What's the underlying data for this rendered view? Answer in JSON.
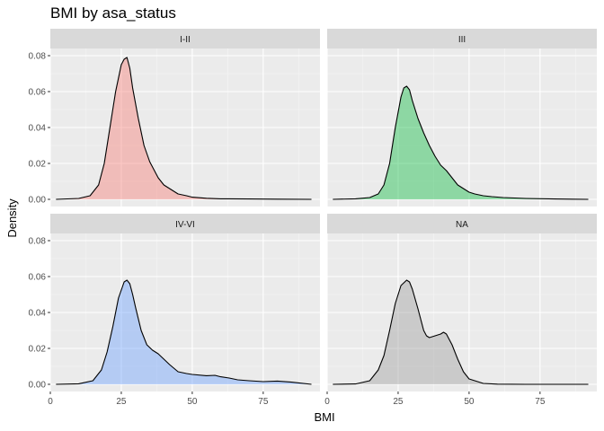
{
  "chart_data": {
    "type": "area",
    "title": "BMI by asa_status",
    "xlabel": "BMI",
    "ylabel": "Density",
    "xlim": [
      0,
      95
    ],
    "ylim": [
      -0.004,
      0.084
    ],
    "x_ticks": [
      0,
      25,
      50,
      75
    ],
    "y_ticks": [
      0.0,
      0.02,
      0.04,
      0.06,
      0.08
    ],
    "y_tick_labels": [
      "0.00",
      "0.02",
      "0.04",
      "0.06",
      "0.08"
    ],
    "grid": true,
    "facets": [
      {
        "label": "I-II",
        "fill": "#f8766d",
        "x": [
          2,
          10,
          14,
          17,
          19,
          21,
          23,
          25,
          26,
          27,
          28,
          29,
          31,
          33,
          35,
          36,
          38,
          40,
          42,
          45,
          48,
          50,
          55,
          60,
          70,
          80,
          92
        ],
        "y": [
          0.0,
          0.0005,
          0.002,
          0.008,
          0.02,
          0.04,
          0.06,
          0.075,
          0.078,
          0.079,
          0.073,
          0.062,
          0.045,
          0.03,
          0.021,
          0.018,
          0.012,
          0.008,
          0.006,
          0.003,
          0.002,
          0.0012,
          0.0006,
          0.0003,
          0.0002,
          0.0001,
          0.0
        ]
      },
      {
        "label": "III",
        "fill": "#00ba38",
        "x": [
          2,
          10,
          15,
          18,
          20,
          22,
          24,
          26,
          27,
          28,
          29,
          30,
          32,
          34,
          36,
          38,
          40,
          42,
          44,
          46,
          48,
          50,
          52,
          55,
          58,
          62,
          70,
          80,
          92
        ],
        "y": [
          0.0,
          0.0003,
          0.001,
          0.003,
          0.008,
          0.02,
          0.04,
          0.057,
          0.062,
          0.063,
          0.061,
          0.055,
          0.045,
          0.037,
          0.03,
          0.024,
          0.019,
          0.016,
          0.012,
          0.008,
          0.006,
          0.004,
          0.003,
          0.002,
          0.0015,
          0.001,
          0.0005,
          0.0002,
          0.0
        ]
      },
      {
        "label": "IV-VI",
        "fill": "#619cff",
        "x": [
          2,
          10,
          15,
          18,
          20,
          22,
          24,
          26,
          27,
          28,
          29,
          30,
          32,
          34,
          36,
          38,
          40,
          42,
          45,
          48,
          50,
          55,
          58,
          60,
          63,
          66,
          70,
          75,
          80,
          85,
          92
        ],
        "y": [
          0.0,
          0.0003,
          0.002,
          0.008,
          0.018,
          0.032,
          0.048,
          0.057,
          0.058,
          0.056,
          0.05,
          0.043,
          0.03,
          0.022,
          0.019,
          0.017,
          0.014,
          0.011,
          0.007,
          0.006,
          0.0055,
          0.0048,
          0.005,
          0.0042,
          0.0035,
          0.0025,
          0.002,
          0.0015,
          0.0018,
          0.0012,
          0.0
        ]
      },
      {
        "label": "NA",
        "fill": "#999999",
        "x": [
          2,
          10,
          15,
          18,
          20,
          22,
          24,
          26,
          28,
          29,
          30,
          32,
          34,
          35,
          36,
          38,
          40,
          41,
          42,
          44,
          46,
          48,
          50,
          55,
          60,
          70,
          80,
          92
        ],
        "y": [
          0.0,
          0.0002,
          0.002,
          0.008,
          0.016,
          0.03,
          0.045,
          0.055,
          0.058,
          0.057,
          0.053,
          0.042,
          0.03,
          0.027,
          0.026,
          0.027,
          0.028,
          0.029,
          0.028,
          0.022,
          0.014,
          0.007,
          0.003,
          0.0005,
          0.0001,
          0.0,
          0.0,
          0.0
        ]
      }
    ]
  }
}
